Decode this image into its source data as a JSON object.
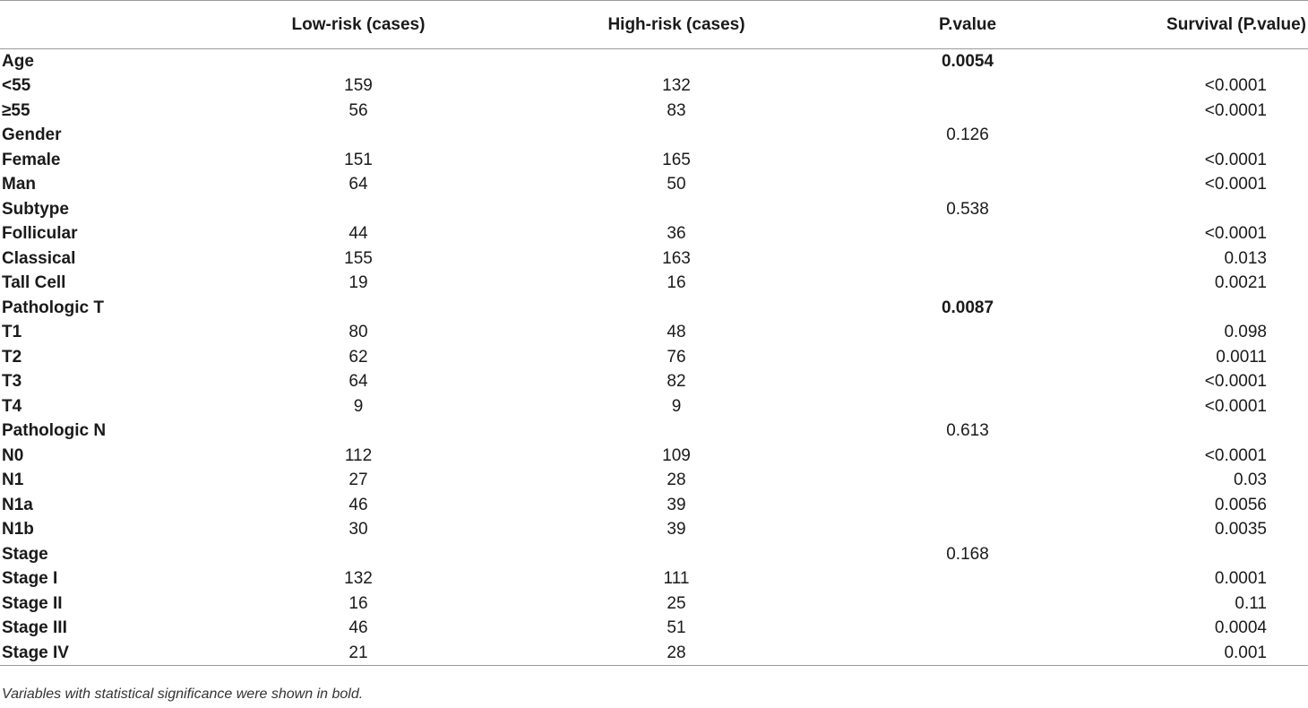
{
  "table": {
    "headers": {
      "label": "",
      "low": "Low-risk (cases)",
      "high": "High-risk (cases)",
      "p": "P.value",
      "survival": "Survival (P.value)"
    },
    "rows": [
      {
        "label": "Age",
        "low": "",
        "high": "",
        "p": "0.0054",
        "p_bold": true,
        "survival": ""
      },
      {
        "label": "<55",
        "low": "159",
        "high": "132",
        "p": "",
        "p_bold": false,
        "survival": "<0.0001"
      },
      {
        "label": "≥55",
        "low": "56",
        "high": "83",
        "p": "",
        "p_bold": false,
        "survival": "<0.0001"
      },
      {
        "label": "Gender",
        "low": "",
        "high": "",
        "p": "0.126",
        "p_bold": false,
        "survival": ""
      },
      {
        "label": "Female",
        "low": "151",
        "high": "165",
        "p": "",
        "p_bold": false,
        "survival": "<0.0001"
      },
      {
        "label": "Man",
        "low": "64",
        "high": "50",
        "p": "",
        "p_bold": false,
        "survival": "<0.0001"
      },
      {
        "label": "Subtype",
        "low": "",
        "high": "",
        "p": "0.538",
        "p_bold": false,
        "survival": ""
      },
      {
        "label": "Follicular",
        "low": "44",
        "high": "36",
        "p": "",
        "p_bold": false,
        "survival": "<0.0001"
      },
      {
        "label": "Classical",
        "low": "155",
        "high": "163",
        "p": "",
        "p_bold": false,
        "survival": "0.013"
      },
      {
        "label": "Tall Cell",
        "low": "19",
        "high": "16",
        "p": "",
        "p_bold": false,
        "survival": "0.0021"
      },
      {
        "label": "Pathologic T",
        "low": "",
        "high": "",
        "p": "0.0087",
        "p_bold": true,
        "survival": ""
      },
      {
        "label": "T1",
        "low": "80",
        "high": "48",
        "p": "",
        "p_bold": false,
        "survival": "0.098"
      },
      {
        "label": "T2",
        "low": "62",
        "high": "76",
        "p": "",
        "p_bold": false,
        "survival": "0.0011"
      },
      {
        "label": "T3",
        "low": "64",
        "high": "82",
        "p": "",
        "p_bold": false,
        "survival": "<0.0001"
      },
      {
        "label": "T4",
        "low": "9",
        "high": "9",
        "p": "",
        "p_bold": false,
        "survival": "<0.0001"
      },
      {
        "label": "Pathologic N",
        "low": "",
        "high": "",
        "p": "0.613",
        "p_bold": false,
        "survival": ""
      },
      {
        "label": "N0",
        "low": "112",
        "high": "109",
        "p": "",
        "p_bold": false,
        "survival": "<0.0001"
      },
      {
        "label": "N1",
        "low": "27",
        "high": "28",
        "p": "",
        "p_bold": false,
        "survival": "0.03"
      },
      {
        "label": "N1a",
        "low": "46",
        "high": "39",
        "p": "",
        "p_bold": false,
        "survival": "0.0056"
      },
      {
        "label": "N1b",
        "low": "30",
        "high": "39",
        "p": "",
        "p_bold": false,
        "survival": "0.0035"
      },
      {
        "label": "Stage",
        "low": "",
        "high": "",
        "p": "0.168",
        "p_bold": false,
        "survival": ""
      },
      {
        "label": "Stage I",
        "low": "132",
        "high": "111",
        "p": "",
        "p_bold": false,
        "survival": "0.0001"
      },
      {
        "label": "Stage II",
        "low": "16",
        "high": "25",
        "p": "",
        "p_bold": false,
        "survival": "0.11"
      },
      {
        "label": "Stage III",
        "low": "46",
        "high": "51",
        "p": "",
        "p_bold": false,
        "survival": "0.0004"
      },
      {
        "label": "Stage IV",
        "low": "21",
        "high": "28",
        "p": "",
        "p_bold": false,
        "survival": "0.001"
      }
    ]
  },
  "footnote": "Variables with statistical significance were shown in bold."
}
